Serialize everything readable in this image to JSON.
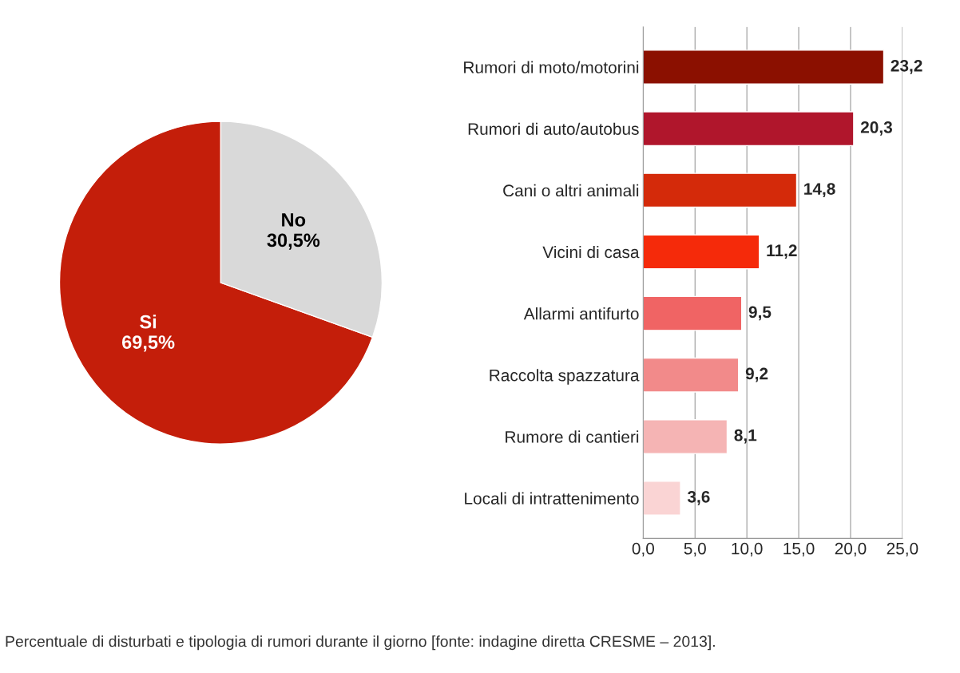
{
  "chart_data": [
    {
      "type": "pie",
      "categories": [
        "Si",
        "No"
      ],
      "values": [
        69.5,
        30.5
      ],
      "colors": [
        "#c41e0a",
        "#d9d9d9"
      ],
      "value_labels": [
        "69,5%",
        "30,5%"
      ]
    },
    {
      "type": "bar",
      "orientation": "horizontal",
      "categories": [
        "Rumori di moto/motorini",
        "Rumori di auto/autobus",
        "Cani o altri animali",
        "Vicini di casa",
        "Allarmi antifurto",
        "Raccolta spazzatura",
        "Rumore di cantieri",
        "Locali di intrattenimento"
      ],
      "values": [
        23.2,
        20.3,
        14.8,
        11.2,
        9.5,
        9.2,
        8.1,
        3.6
      ],
      "colors": [
        "#8b1000",
        "#b0162c",
        "#d42a0a",
        "#f52a0a",
        "#f06464",
        "#f28a8a",
        "#f5b4b4",
        "#fad4d4"
      ],
      "value_labels": [
        "23,2",
        "20,3",
        "14,8",
        "11,2",
        "9,5",
        "9,2",
        "8,1",
        "3,6"
      ],
      "xlim": [
        0,
        25
      ],
      "xticks": [
        {
          "value": 0,
          "label": "0,0"
        },
        {
          "value": 5,
          "label": "5,0"
        },
        {
          "value": 10,
          "label": "10,0"
        },
        {
          "value": 15,
          "label": "15,0"
        },
        {
          "value": 20,
          "label": "20,0"
        },
        {
          "value": 25,
          "label": "25,0"
        }
      ],
      "grid": "x",
      "legend": false,
      "annotations": [
        "Percentuale di disturbati e tipologia di rumori durante il giorno [fonte: indagine diretta CRESME – 2013]."
      ]
    }
  ]
}
